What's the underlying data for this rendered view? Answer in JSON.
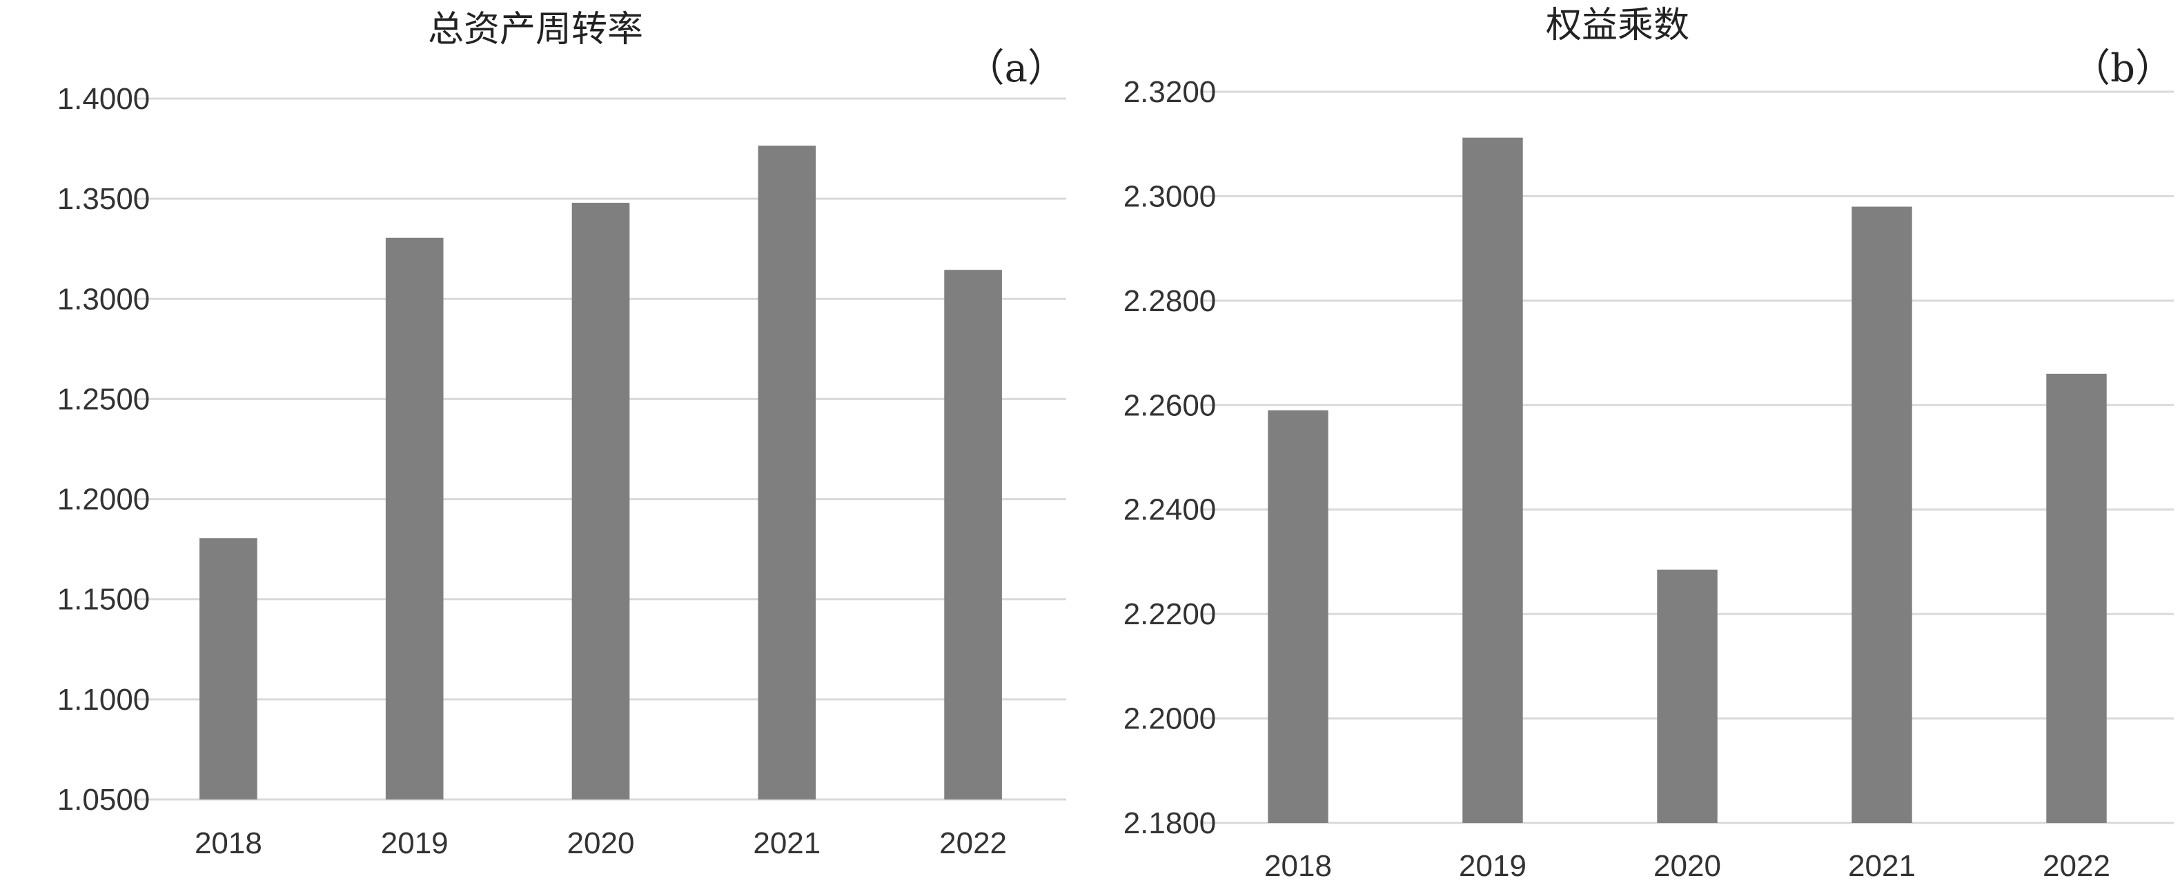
{
  "chart_data": [
    {
      "type": "bar",
      "title": "总资产周转率",
      "panel_label": "（a）",
      "categories": [
        "2018",
        "2019",
        "2020",
        "2021",
        "2022"
      ],
      "values": [
        1.1805,
        1.3305,
        1.348,
        1.3765,
        1.3145
      ],
      "ylim": [
        1.05,
        1.4
      ],
      "yticks": [
        "1.0500",
        "1.1000",
        "1.1500",
        "1.2000",
        "1.2500",
        "1.3000",
        "1.3500",
        "1.4000"
      ],
      "bar_color": "#7f7f7f",
      "grid": true
    },
    {
      "type": "bar",
      "title": "权益乘数",
      "panel_label": "（b）",
      "categories": [
        "2018",
        "2019",
        "2020",
        "2021",
        "2022"
      ],
      "values": [
        2.259,
        2.3112,
        2.2285,
        2.298,
        2.266
      ],
      "ylim": [
        2.18,
        2.32
      ],
      "yticks": [
        "2.1800",
        "2.2000",
        "2.2200",
        "2.2400",
        "2.2600",
        "2.2800",
        "2.3000",
        "2.3200"
      ],
      "bar_color": "#7f7f7f",
      "grid": true
    }
  ]
}
